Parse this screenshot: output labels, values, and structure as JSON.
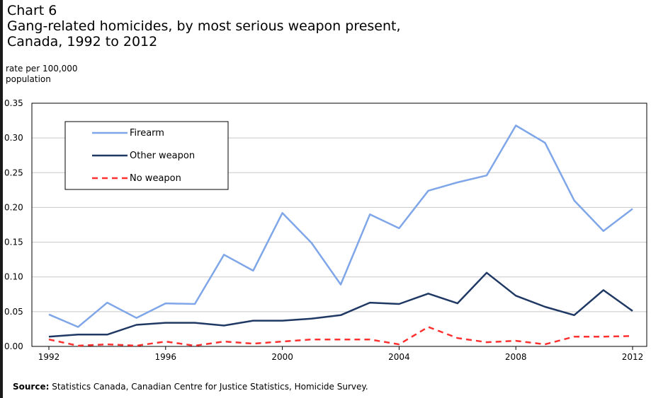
{
  "chart_label": "Chart 6",
  "title_line1": "Gang-related homicides, by most serious weapon present,",
  "title_line2": "Canada, 1992 to 2012",
  "ylabel_line1": "rate per 100,000",
  "ylabel_line2": "population",
  "source_label": "Source:",
  "source_text": "Statistics Canada, Canadian Centre for Justice Statistics, Homicide Survey.",
  "chart_data": {
    "type": "line",
    "title": "Gang-related homicides, by most serious weapon present, Canada, 1992 to 2012",
    "xlabel": "",
    "ylabel": "rate per 100,000 population",
    "x": [
      1992,
      1993,
      1994,
      1995,
      1996,
      1997,
      1998,
      1999,
      2000,
      2001,
      2002,
      2003,
      2004,
      2005,
      2006,
      2007,
      2008,
      2009,
      2010,
      2011,
      2012
    ],
    "xticks": [
      "1992",
      "1996",
      "2000",
      "2004",
      "2008",
      "2012"
    ],
    "yticks": [
      "0.00",
      "0.05",
      "0.10",
      "0.15",
      "0.20",
      "0.25",
      "0.30",
      "0.35"
    ],
    "ylim": [
      0,
      0.35
    ],
    "grid": true,
    "legend_position": "top-left",
    "series": [
      {
        "name": "Firearm",
        "color": "#7fa6e8",
        "dash": "solid",
        "values": [
          0.046,
          0.028,
          0.063,
          0.041,
          0.062,
          0.061,
          0.132,
          0.109,
          0.192,
          0.149,
          0.089,
          0.19,
          0.17,
          0.224,
          0.236,
          0.246,
          0.318,
          0.293,
          0.21,
          0.166,
          0.198
        ]
      },
      {
        "name": "Other weapon",
        "color": "#1f3864",
        "dash": "solid",
        "values": [
          0.014,
          0.017,
          0.017,
          0.031,
          0.034,
          0.034,
          0.03,
          0.037,
          0.037,
          0.04,
          0.045,
          0.063,
          0.061,
          0.076,
          0.062,
          0.106,
          0.073,
          0.057,
          0.045,
          0.081,
          0.051
        ]
      },
      {
        "name": "No weapon",
        "color": "#ff3030",
        "dash": "dashed",
        "values": [
          0.01,
          0.001,
          0.003,
          0.001,
          0.007,
          0.001,
          0.007,
          0.004,
          0.007,
          0.01,
          0.01,
          0.01,
          0.003,
          0.028,
          0.012,
          0.006,
          0.008,
          0.003,
          0.014,
          0.014,
          0.015
        ]
      }
    ]
  }
}
